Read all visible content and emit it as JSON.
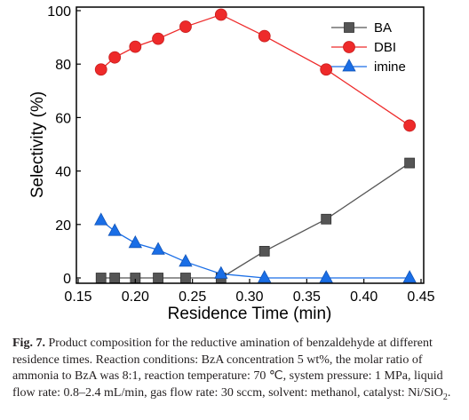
{
  "chart_data": {
    "type": "line",
    "xlabel": "Residence Time (min)",
    "ylabel": "Selectivity (%)",
    "xlim": [
      0.15,
      0.45
    ],
    "ylim": [
      0,
      100
    ],
    "x_ticks": [
      "0.15",
      "0.20",
      "0.25",
      "0.30",
      "0.35",
      "0.40",
      "0.45"
    ],
    "y_ticks": [
      "0",
      "20",
      "40",
      "60",
      "80",
      "100"
    ],
    "x": [
      0.17,
      0.182,
      0.2,
      0.22,
      0.244,
      0.275,
      0.313,
      0.367,
      0.44
    ],
    "series": [
      {
        "name": "BA",
        "color": "#555555",
        "marker": "square",
        "values": [
          0,
          0,
          0,
          0,
          0,
          0,
          10,
          22,
          43
        ]
      },
      {
        "name": "DBI",
        "color": "#ee2a2a",
        "marker": "circle",
        "values": [
          78,
          82.5,
          86.5,
          89.5,
          94,
          98.5,
          90.5,
          78,
          57
        ]
      },
      {
        "name": "imine",
        "color": "#1a6ee6",
        "marker": "triangle",
        "values": [
          21.5,
          17.5,
          13,
          10.5,
          6,
          1.5,
          0,
          0,
          0
        ]
      }
    ],
    "legend_position": "top-right",
    "grid": false
  },
  "caption": {
    "label": "Fig. 7.",
    "text_before": " Product composition for the reductive amination of benzaldehyde at different residence times. Reaction conditions: BzA concentration 5 wt%, the molar ratio of ammonia to BzA was 8:1, reaction temperature: 70 ℃, system pressure: 1 MPa, liquid flow rate: 0.8–2.4 mL/min, gas flow rate: 30 sccm, solvent: methanol, catalyst: Ni/SiO",
    "subscript": "2",
    "text_after": "."
  }
}
